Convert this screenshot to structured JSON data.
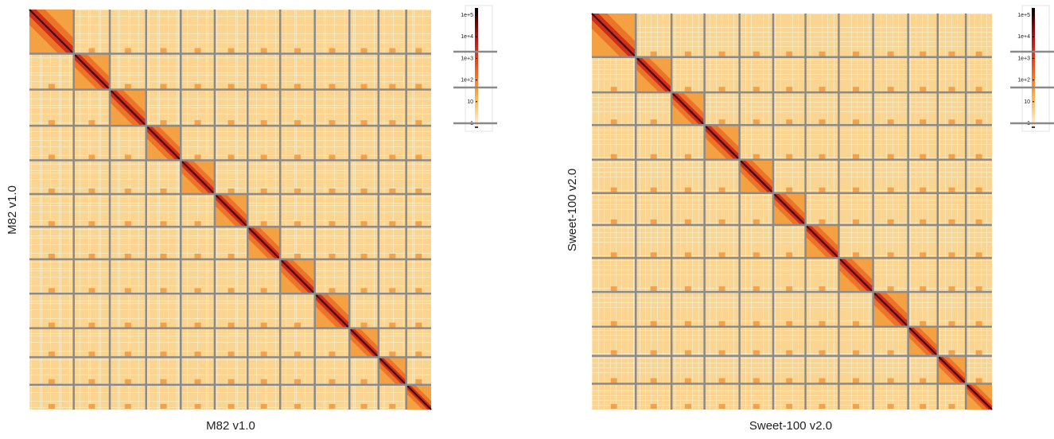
{
  "chart_data": [
    {
      "type": "heatmap",
      "title": "",
      "xlabel": "M82 v1.0",
      "ylabel": "M82 v1.0",
      "chromosome_count": 12,
      "chromosome_sizes": [
        1.28,
        1.04,
        1.05,
        1.0,
        0.98,
        0.95,
        0.94,
        1.0,
        1.0,
        0.84,
        0.8,
        0.72
      ],
      "colorbar": {
        "scale": "log",
        "ticks": [
          "1e+5",
          "1e+4",
          "1e+3",
          "1e+2",
          "10",
          "1"
        ],
        "colors": [
          "#000000",
          "#5a0000",
          "#b0141a",
          "#e8461e",
          "#f7a33c",
          "#fff6e0"
        ]
      }
    },
    {
      "type": "heatmap",
      "title": "",
      "xlabel": "Sweet-100 v2.0",
      "ylabel": "Sweet-100 v2.0",
      "chromosome_count": 12,
      "chromosome_sizes": [
        1.28,
        1.04,
        0.96,
        1.02,
        0.98,
        0.94,
        0.97,
        1.0,
        1.02,
        0.86,
        0.82,
        0.76
      ],
      "colorbar": {
        "scale": "log",
        "ticks": [
          "1e+5",
          "1e+4",
          "1e+3",
          "1e+2",
          "10",
          "1"
        ],
        "colors": [
          "#000000",
          "#5a0000",
          "#b0141a",
          "#e8461e",
          "#f7a33c",
          "#fff6e0"
        ]
      }
    }
  ]
}
